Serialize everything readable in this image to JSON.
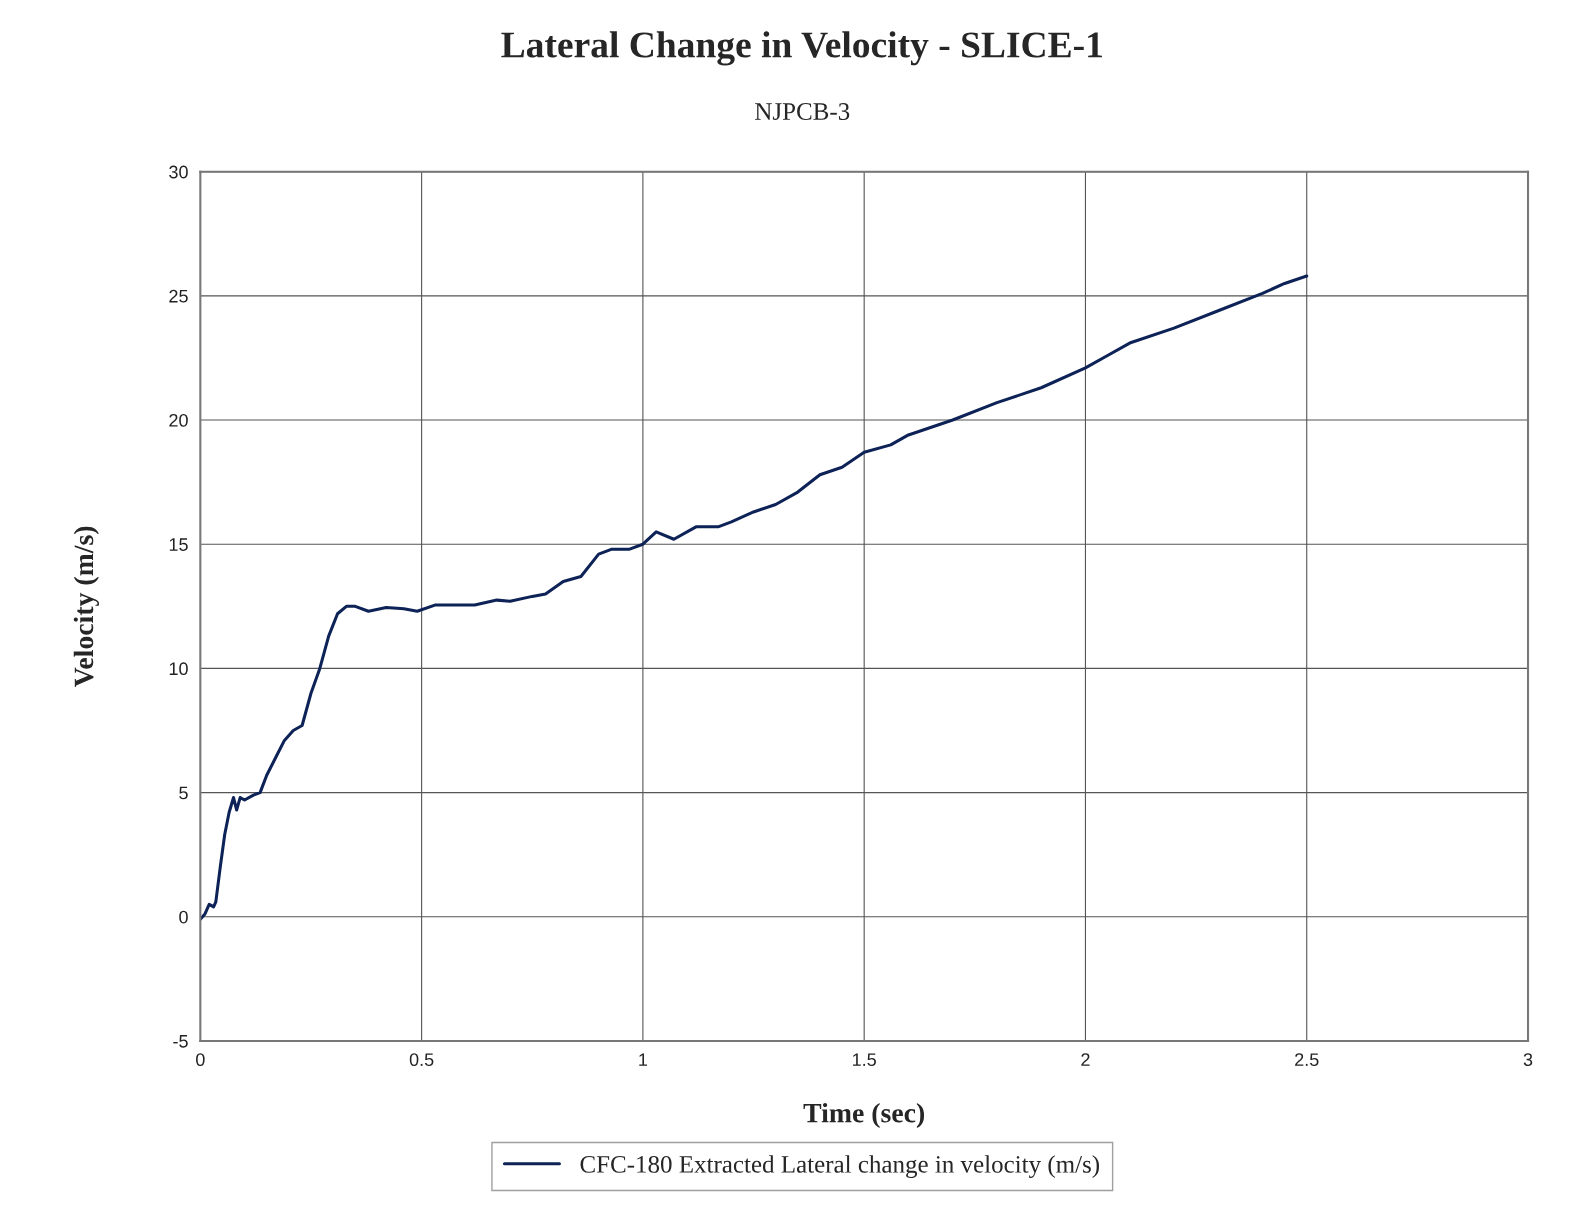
{
  "chart_data": {
    "type": "line",
    "title": "Lateral Change in Velocity - SLICE-1",
    "subtitle": "NJPCB-3",
    "xlabel": "Time (sec)",
    "ylabel": "Velocity (m/s)",
    "x": [
      0,
      0.01,
      0.02,
      0.03,
      0.035,
      0.045,
      0.055,
      0.065,
      0.075,
      0.082,
      0.09,
      0.1,
      0.12,
      0.135,
      0.15,
      0.17,
      0.19,
      0.21,
      0.23,
      0.25,
      0.27,
      0.29,
      0.31,
      0.33,
      0.35,
      0.38,
      0.42,
      0.46,
      0.49,
      0.53,
      0.58,
      0.62,
      0.67,
      0.7,
      0.75,
      0.78,
      0.82,
      0.86,
      0.9,
      0.93,
      0.97,
      1.0,
      1.03,
      1.07,
      1.12,
      1.17,
      1.2,
      1.25,
      1.3,
      1.35,
      1.4,
      1.45,
      1.5,
      1.56,
      1.6,
      1.7,
      1.8,
      1.9,
      2.0,
      2.05,
      2.1,
      2.2,
      2.3,
      2.4,
      2.45,
      2.5
    ],
    "series": [
      {
        "name": "CFC-180 Extracted Lateral change in velocity (m/s)",
        "color": "#0d2256",
        "values": [
          -0.1,
          0.1,
          0.5,
          0.4,
          0.6,
          2,
          3.3,
          4.2,
          4.8,
          4.3,
          4.8,
          4.7,
          4.9,
          5.0,
          5.7,
          6.4,
          7.1,
          7.5,
          7.7,
          9.0,
          10.0,
          11.3,
          12.2,
          12.5,
          12.5,
          12.3,
          12.45,
          12.4,
          12.3,
          12.55,
          12.55,
          12.55,
          12.75,
          12.7,
          12.9,
          13.0,
          13.5,
          13.7,
          14.6,
          14.8,
          14.8,
          15.0,
          15.5,
          15.2,
          15.7,
          15.7,
          15.9,
          16.3,
          16.6,
          17.1,
          17.8,
          18.1,
          18.7,
          19.0,
          19.4,
          20.0,
          20.7,
          21.3,
          22.1,
          22.6,
          23.1,
          23.7,
          24.4,
          25.1,
          25.5,
          25.8
        ]
      }
    ],
    "xlim": [
      0,
      3
    ],
    "xticks": [
      0,
      0.5,
      1,
      1.5,
      2,
      2.5,
      3
    ],
    "ylim": [
      -5,
      30
    ],
    "yticks": [
      -5,
      0,
      5,
      10,
      15,
      20,
      25,
      30
    ],
    "grid": true,
    "legend": "bottom",
    "marker": "none",
    "line_style": "solid"
  }
}
